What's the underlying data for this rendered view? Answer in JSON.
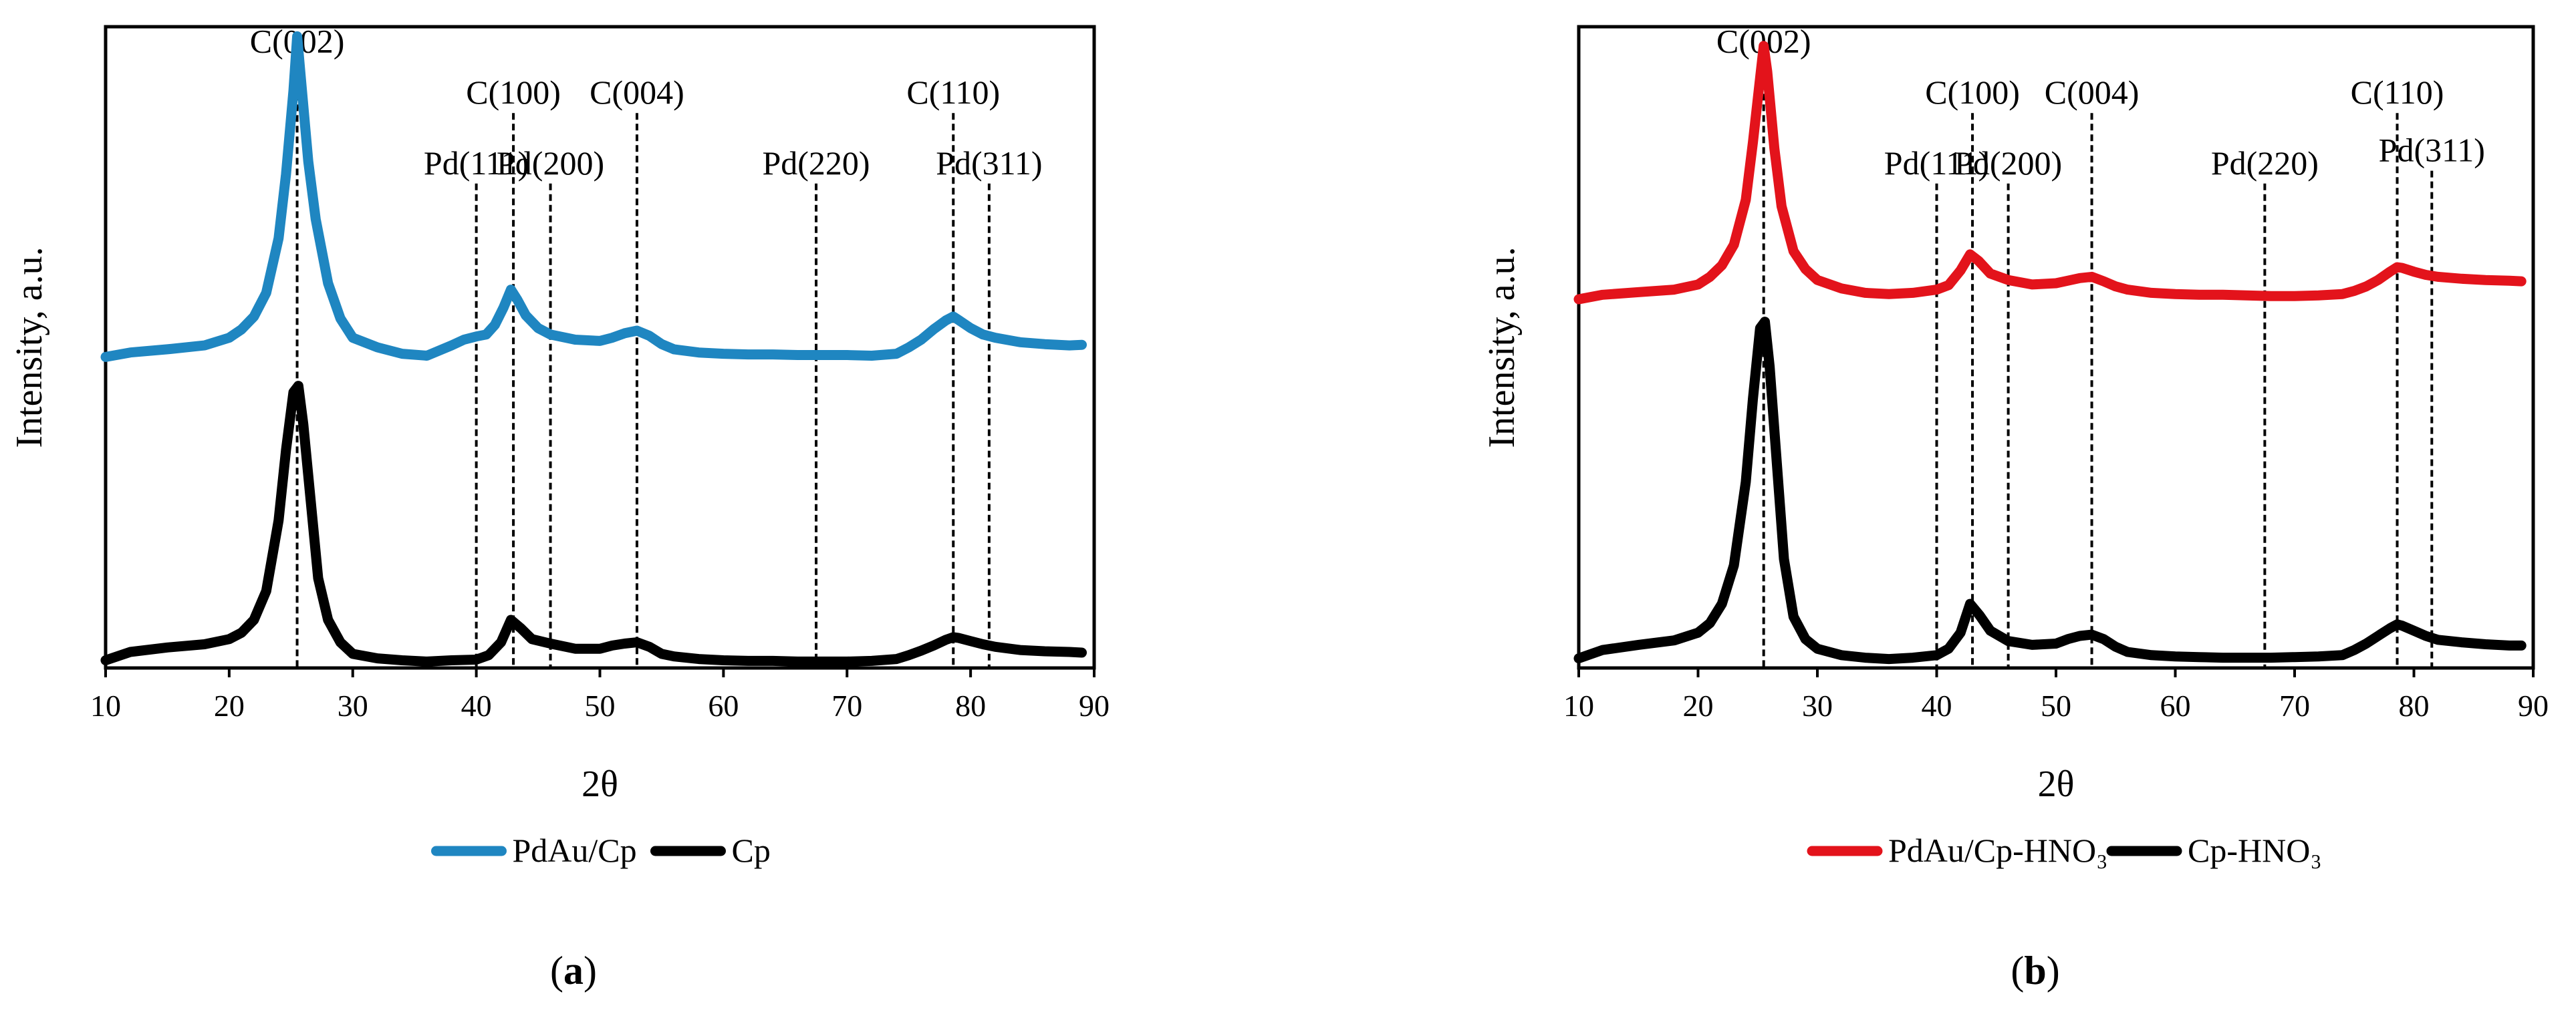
{
  "chart_data": [
    {
      "type": "line",
      "panel_label": "(a)",
      "panel_letter": "a",
      "xlabel": "2θ",
      "ylabel": "Intensity, a.u.",
      "xlim": [
        10,
        90
      ],
      "ylim": [
        0,
        1
      ],
      "xticks": [
        10,
        20,
        30,
        40,
        50,
        60,
        70,
        80,
        90
      ],
      "xtick_labels": [
        "10",
        "20",
        "30",
        "40",
        "50",
        "60",
        "70",
        "80",
        "90"
      ],
      "y_tick_labels_shown": false,
      "reference_lines": [
        {
          "label": "C(002)",
          "x": 25.5,
          "label_y": 0.96
        },
        {
          "label": "C(100)",
          "x": 43.0,
          "label_y": 0.88
        },
        {
          "label": "C(004)",
          "x": 53.0,
          "label_y": 0.88
        },
        {
          "label": "C(110)",
          "x": 78.6,
          "label_y": 0.88
        },
        {
          "label": "Pd(111)",
          "x": 40.0,
          "label_y": 0.77
        },
        {
          "label": "Pd(200)",
          "x": 46.0,
          "label_y": 0.77
        },
        {
          "label": "Pd(220)",
          "x": 67.5,
          "label_y": 0.77
        },
        {
          "label": "Pd(311)",
          "x": 81.5,
          "label_y": 0.77
        }
      ],
      "series": [
        {
          "name": "PdAu/Cp",
          "color": "#1F86C1",
          "x": [
            10,
            12,
            15,
            18,
            20,
            21,
            22,
            23,
            24,
            24.6,
            25.2,
            25.5,
            25.8,
            26.4,
            27,
            28,
            29,
            30,
            32,
            34,
            36,
            38,
            39,
            40,
            40.8,
            41.5,
            42.2,
            42.8,
            43.3,
            44,
            45,
            46,
            48,
            50,
            51,
            52,
            53,
            54,
            55,
            56,
            58,
            60,
            62,
            64,
            66,
            68,
            70,
            72,
            74,
            75,
            76,
            77,
            78,
            78.6,
            79,
            80,
            81,
            82,
            84,
            86,
            88,
            89
          ],
          "y": [
            0.485,
            0.492,
            0.497,
            0.503,
            0.515,
            0.528,
            0.548,
            0.585,
            0.67,
            0.77,
            0.9,
            0.985,
            0.92,
            0.79,
            0.7,
            0.6,
            0.545,
            0.515,
            0.5,
            0.49,
            0.487,
            0.503,
            0.512,
            0.517,
            0.52,
            0.535,
            0.562,
            0.59,
            0.575,
            0.55,
            0.53,
            0.52,
            0.512,
            0.51,
            0.515,
            0.522,
            0.526,
            0.518,
            0.505,
            0.497,
            0.492,
            0.49,
            0.489,
            0.489,
            0.488,
            0.488,
            0.488,
            0.487,
            0.49,
            0.5,
            0.512,
            0.528,
            0.542,
            0.548,
            0.543,
            0.53,
            0.52,
            0.515,
            0.508,
            0.505,
            0.503,
            0.504
          ]
        },
        {
          "name": "Cp",
          "color": "#000000",
          "x": [
            10,
            12,
            15,
            18,
            20,
            21,
            22,
            23,
            24,
            24.6,
            25.2,
            25.6,
            26,
            26.6,
            27.2,
            28,
            29,
            30,
            32,
            34,
            36,
            38,
            40,
            41,
            42,
            42.8,
            43.6,
            44.5,
            46,
            48,
            50,
            51,
            52,
            53,
            54,
            55,
            56,
            58,
            60,
            62,
            64,
            66,
            68,
            70,
            72,
            74,
            75,
            76,
            77,
            78,
            78.6,
            79,
            80,
            81,
            82,
            84,
            86,
            88,
            89
          ],
          "y": [
            0.012,
            0.025,
            0.032,
            0.037,
            0.045,
            0.055,
            0.075,
            0.12,
            0.23,
            0.34,
            0.43,
            0.44,
            0.38,
            0.26,
            0.14,
            0.075,
            0.04,
            0.022,
            0.015,
            0.012,
            0.01,
            0.012,
            0.013,
            0.02,
            0.04,
            0.075,
            0.062,
            0.045,
            0.038,
            0.03,
            0.03,
            0.035,
            0.038,
            0.04,
            0.033,
            0.022,
            0.018,
            0.014,
            0.012,
            0.011,
            0.011,
            0.01,
            0.01,
            0.01,
            0.011,
            0.014,
            0.02,
            0.027,
            0.035,
            0.044,
            0.048,
            0.047,
            0.042,
            0.037,
            0.033,
            0.028,
            0.026,
            0.025,
            0.024
          ]
        }
      ],
      "legend": {
        "placement": "bottom-center",
        "entries": [
          "PdAu/Cp",
          "Cp"
        ]
      }
    },
    {
      "type": "line",
      "panel_label": "(b)",
      "panel_letter": "b",
      "xlabel": "2θ",
      "ylabel": "Intensity, a.u.",
      "xlim": [
        10,
        90
      ],
      "ylim": [
        0,
        1
      ],
      "xticks": [
        10,
        20,
        30,
        40,
        50,
        60,
        70,
        80,
        90
      ],
      "xtick_labels": [
        "10",
        "20",
        "30",
        "40",
        "50",
        "60",
        "70",
        "80",
        "90"
      ],
      "y_tick_labels_shown": false,
      "reference_lines": [
        {
          "label": "C(002)",
          "x": 25.5,
          "label_y": 0.96
        },
        {
          "label": "C(100)",
          "x": 43.0,
          "label_y": 0.88
        },
        {
          "label": "C(004)",
          "x": 53.0,
          "label_y": 0.88
        },
        {
          "label": "C(110)",
          "x": 78.6,
          "label_y": 0.88
        },
        {
          "label": "Pd(111)",
          "x": 40.0,
          "label_y": 0.77
        },
        {
          "label": "Pd(200)",
          "x": 46.0,
          "label_y": 0.77
        },
        {
          "label": "Pd(220)",
          "x": 67.5,
          "label_y": 0.77
        },
        {
          "label": "Pd(311)",
          "x": 81.5,
          "label_y": 0.79
        }
      ],
      "series": [
        {
          "name": "PdAu/Cp-HNO₃",
          "color": "#E3131B",
          "x": [
            10,
            12,
            15,
            18,
            20,
            21,
            22,
            23,
            24,
            24.6,
            25.2,
            25.5,
            25.8,
            26.4,
            27,
            28,
            29,
            30,
            32,
            34,
            36,
            38,
            40,
            41,
            42,
            42.8,
            43.5,
            44.5,
            46,
            48,
            50,
            51,
            52,
            53,
            54,
            55,
            56,
            58,
            60,
            62,
            64,
            66,
            68,
            70,
            72,
            74,
            75,
            76,
            77,
            78,
            78.6,
            79,
            80,
            81,
            82,
            84,
            86,
            88,
            89
          ],
          "y": [
            0.575,
            0.582,
            0.586,
            0.59,
            0.598,
            0.61,
            0.628,
            0.66,
            0.73,
            0.82,
            0.92,
            0.97,
            0.93,
            0.81,
            0.72,
            0.65,
            0.622,
            0.605,
            0.592,
            0.585,
            0.583,
            0.585,
            0.59,
            0.597,
            0.62,
            0.645,
            0.635,
            0.615,
            0.605,
            0.598,
            0.6,
            0.604,
            0.608,
            0.61,
            0.603,
            0.595,
            0.59,
            0.585,
            0.583,
            0.582,
            0.582,
            0.581,
            0.58,
            0.58,
            0.581,
            0.583,
            0.588,
            0.595,
            0.605,
            0.618,
            0.625,
            0.624,
            0.618,
            0.613,
            0.61,
            0.607,
            0.605,
            0.604,
            0.603
          ]
        },
        {
          "name": "Cp-HNO₃",
          "color": "#000000",
          "x": [
            10,
            12,
            15,
            18,
            20,
            21,
            22,
            23,
            24,
            24.6,
            25.2,
            25.6,
            26,
            26.6,
            27.2,
            28,
            29,
            30,
            32,
            34,
            36,
            38,
            40,
            41,
            42,
            42.8,
            43.6,
            44.5,
            46,
            48,
            50,
            51,
            52,
            53,
            54,
            55,
            56,
            58,
            60,
            62,
            64,
            66,
            68,
            70,
            72,
            74,
            75,
            76,
            77,
            78,
            78.6,
            79,
            80,
            81,
            82,
            84,
            86,
            88,
            89
          ],
          "y": [
            0.015,
            0.028,
            0.036,
            0.043,
            0.055,
            0.07,
            0.1,
            0.16,
            0.29,
            0.42,
            0.53,
            0.54,
            0.47,
            0.32,
            0.17,
            0.08,
            0.045,
            0.03,
            0.02,
            0.016,
            0.014,
            0.016,
            0.02,
            0.03,
            0.055,
            0.1,
            0.082,
            0.058,
            0.042,
            0.036,
            0.038,
            0.045,
            0.05,
            0.052,
            0.045,
            0.033,
            0.025,
            0.02,
            0.018,
            0.017,
            0.016,
            0.016,
            0.016,
            0.017,
            0.018,
            0.02,
            0.028,
            0.038,
            0.05,
            0.062,
            0.068,
            0.066,
            0.058,
            0.05,
            0.044,
            0.04,
            0.037,
            0.035,
            0.035
          ]
        }
      ],
      "legend": {
        "placement": "bottom-center",
        "entries": [
          "PdAu/Cp-HNO₃",
          "Cp-HNO₃"
        ]
      }
    }
  ]
}
